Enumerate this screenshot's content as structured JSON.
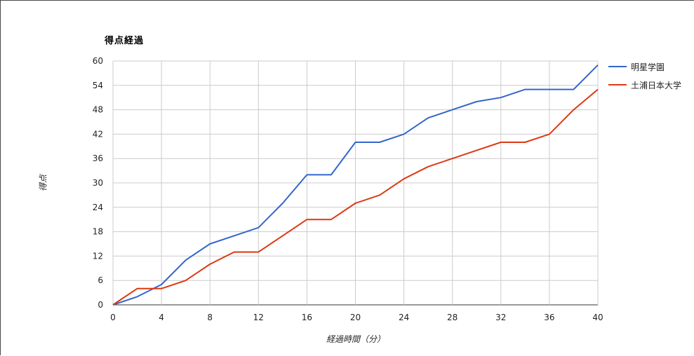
{
  "chart_data": {
    "type": "line",
    "title": "得点経過",
    "xlabel": "経過時間（分）",
    "ylabel": "得点",
    "xlim": [
      0,
      40
    ],
    "ylim": [
      0,
      60
    ],
    "x_ticks": [
      0,
      4,
      8,
      12,
      16,
      20,
      24,
      28,
      32,
      36,
      40
    ],
    "y_ticks": [
      0,
      6,
      12,
      18,
      24,
      30,
      36,
      42,
      48,
      54,
      60
    ],
    "grid": true,
    "legend_position": "right",
    "x": [
      0,
      2,
      4,
      6,
      8,
      10,
      12,
      14,
      16,
      18,
      20,
      22,
      24,
      26,
      28,
      30,
      32,
      34,
      36,
      38,
      40
    ],
    "series": [
      {
        "name": "明星学園",
        "color": "#3366cc",
        "values": [
          0,
          2,
          5,
          11,
          15,
          17,
          19,
          25,
          32,
          32,
          40,
          40,
          42,
          46,
          48,
          50,
          51,
          53,
          53,
          53,
          59
        ]
      },
      {
        "name": "土浦日本大学",
        "color": "#dc3912",
        "values": [
          0,
          4,
          4,
          6,
          10,
          13,
          13,
          17,
          21,
          21,
          25,
          27,
          31,
          34,
          36,
          38,
          40,
          40,
          42,
          48,
          53
        ]
      }
    ]
  }
}
